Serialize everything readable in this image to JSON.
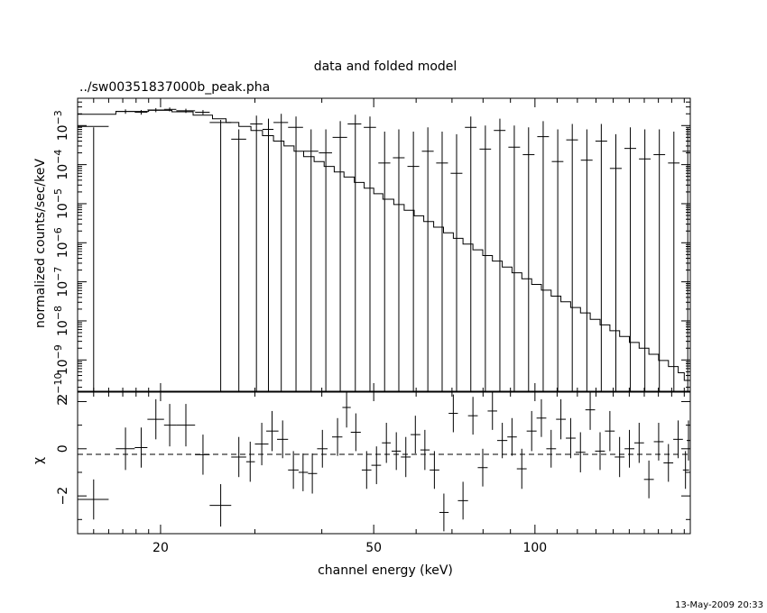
{
  "chart_data": [
    {
      "type": "scatter",
      "panel": "spectrum",
      "title": "data and folded model",
      "subtitle": "../sw00351837000b_peak.pha",
      "ylabel": "normalized counts/sec/keV",
      "xscale": "log",
      "yscale": "log",
      "xlim": [
        14,
        195
      ],
      "ylim": [
        1.5e-10,
        0.005
      ],
      "ytick_labels": [
        {
          "value": 2e-10,
          "base": "2",
          "exp": "10",
          "sign": "−"
        },
        {
          "value": 1e-09,
          "base": "10",
          "exp": "9",
          "sign": "−"
        },
        {
          "value": 1e-08,
          "base": "10",
          "exp": "8",
          "sign": "−"
        },
        {
          "value": 1e-07,
          "base": "10",
          "exp": "7",
          "sign": "−"
        },
        {
          "value": 1e-06,
          "base": "10",
          "exp": "6",
          "sign": "−"
        },
        {
          "value": 1e-05,
          "base": "10",
          "exp": "5",
          "sign": "−"
        },
        {
          "value": 0.0001,
          "base": "10",
          "exp": "4",
          "sign": "−"
        },
        {
          "value": 0.001,
          "base": "10",
          "exp": "3",
          "sign": "−"
        }
      ],
      "series": [
        {
          "kind": "data",
          "points": [
            [
              15.0,
              0.00095,
              14.0,
              16.0,
              1e-12,
              0.0009
            ],
            [
              17.2,
              0.0023,
              16.5,
              17.9,
              0.002,
              0.0026
            ],
            [
              18.4,
              0.0022,
              17.9,
              18.9,
              0.0019,
              0.0025
            ],
            [
              19.6,
              0.0025,
              18.9,
              20.3,
              0.0022,
              0.0028
            ],
            [
              20.8,
              0.0026,
              20.3,
              21.4,
              0.0023,
              0.0029
            ],
            [
              22.3,
              0.0024,
              21.4,
              23.2,
              0.0021,
              0.0027
            ],
            [
              24.0,
              0.0022,
              23.2,
              24.7,
              0.0019,
              0.0025
            ],
            [
              25.9,
              0.0012,
              24.7,
              27.1,
              1e-12,
              0.0014
            ],
            [
              28.0,
              0.00045,
              27.1,
              28.9,
              1e-12,
              0.0008
            ],
            [
              30.2,
              0.0011,
              29.4,
              31.0,
              1e-12,
              0.0018
            ],
            [
              31.8,
              0.0008,
              31.0,
              32.5,
              1e-12,
              0.0015
            ],
            [
              33.6,
              0.0012,
              32.5,
              34.6,
              1e-12,
              0.002
            ],
            [
              35.8,
              0.0009,
              34.6,
              36.9,
              1e-12,
              0.0017
            ],
            [
              38.2,
              0.00022,
              37.0,
              39.4,
              1e-12,
              0.0008
            ],
            [
              40.7,
              0.0002,
              39.5,
              41.8,
              1e-12,
              0.0008
            ],
            [
              43.3,
              0.0005,
              41.9,
              44.6,
              1e-12,
              0.0013
            ],
            [
              46.2,
              0.0011,
              44.7,
              47.4,
              1e-12,
              0.0019
            ],
            [
              49.2,
              0.0009,
              47.9,
              50.5,
              1e-12,
              0.0017
            ],
            [
              52.4,
              0.00011,
              51.0,
              53.7,
              1e-12,
              0.0007
            ],
            [
              55.7,
              0.00015,
              54.3,
              57.1,
              1e-12,
              0.0008
            ],
            [
              59.3,
              9e-05,
              57.8,
              60.8,
              1e-12,
              0.0007
            ],
            [
              63.1,
              0.00022,
              61.5,
              64.7,
              1e-12,
              0.0009
            ],
            [
              67.1,
              0.00011,
              65.4,
              68.8,
              1e-12,
              0.0007
            ],
            [
              71.4,
              6e-05,
              69.6,
              73.2,
              1e-12,
              0.0006
            ],
            [
              75.9,
              0.0009,
              74.0,
              77.8,
              1e-12,
              0.0017
            ],
            [
              80.8,
              0.00025,
              78.8,
              82.8,
              1e-12,
              0.001
            ],
            [
              86.0,
              0.00075,
              83.8,
              88.1,
              1e-12,
              0.0015
            ],
            [
              91.5,
              0.00028,
              89.2,
              93.8,
              1e-12,
              0.001
            ],
            [
              97.3,
              0.00018,
              94.9,
              99.8,
              1e-12,
              0.0009
            ],
            [
              103.6,
              0.00052,
              101.0,
              106.2,
              1e-12,
              0.0013
            ],
            [
              110.3,
              0.00012,
              107.5,
              113.0,
              1e-12,
              0.0008
            ],
            [
              117.4,
              0.00043,
              114.4,
              120.3,
              1e-12,
              0.0011
            ],
            [
              125.0,
              0.00013,
              121.8,
              128.1,
              1e-12,
              0.0008
            ],
            [
              133.0,
              0.0004,
              129.7,
              136.4,
              1e-12,
              0.0011
            ],
            [
              141.6,
              8e-05,
              138.0,
              145.2,
              1e-12,
              0.0006
            ],
            [
              150.7,
              0.00026,
              146.9,
              154.5,
              1e-12,
              0.0009
            ],
            [
              160.4,
              0.00014,
              156.4,
              164.4,
              1e-12,
              0.0008
            ],
            [
              170.7,
              0.00018,
              166.5,
              175.0,
              1e-12,
              0.0008
            ],
            [
              181.7,
              0.00011,
              177.2,
              186.2,
              1e-12,
              0.0007
            ],
            [
              192.9,
              0.00022,
              188.6,
              195.0,
              1e-12,
              0.0009
            ]
          ]
        },
        {
          "kind": "model",
          "steps": [
            [
              14.0,
              0.00195
            ],
            [
              16.5,
              0.0023
            ],
            [
              19.0,
              0.00245
            ],
            [
              21.0,
              0.00225
            ],
            [
              23.0,
              0.00185
            ],
            [
              25.0,
              0.0015
            ],
            [
              26.5,
              0.0012
            ],
            [
              28.0,
              0.00095
            ],
            [
              29.5,
              0.00075
            ],
            [
              31.0,
              0.00055
            ],
            [
              32.5,
              0.0004
            ],
            [
              34.0,
              0.0003
            ],
            [
              35.5,
              0.00022
            ],
            [
              37.0,
              0.00016
            ],
            [
              38.7,
              0.00012
            ],
            [
              40.4,
              9e-05
            ],
            [
              42.2,
              6.5e-05
            ],
            [
              44.0,
              4.8e-05
            ],
            [
              46.0,
              3.5e-05
            ],
            [
              48.0,
              2.5e-05
            ],
            [
              50.0,
              1.8e-05
            ],
            [
              52.0,
              1.3e-05
            ],
            [
              54.5,
              9.5e-06
            ],
            [
              57.0,
              6.8e-06
            ],
            [
              59.5,
              4.9e-06
            ],
            [
              62.0,
              3.5e-06
            ],
            [
              64.7,
              2.5e-06
            ],
            [
              67.5,
              1.8e-06
            ],
            [
              70.4,
              1.3e-06
            ],
            [
              73.4,
              9.3e-07
            ],
            [
              76.6,
              6.6e-07
            ],
            [
              79.9,
              4.7e-07
            ],
            [
              83.3,
              3.4e-07
            ],
            [
              86.9,
              2.4e-07
            ],
            [
              90.6,
              1.7e-07
            ],
            [
              94.5,
              1.2e-07
            ],
            [
              98.6,
              8.6e-08
            ],
            [
              102.8,
              6.1e-08
            ],
            [
              107.2,
              4.3e-08
            ],
            [
              111.8,
              3.1e-08
            ],
            [
              116.6,
              2.2e-08
            ],
            [
              121.6,
              1.6e-08
            ],
            [
              126.8,
              1.1e-08
            ],
            [
              132.3,
              7.9e-09
            ],
            [
              138.0,
              5.6e-09
            ],
            [
              143.9,
              4e-09
            ],
            [
              150.1,
              2.8e-09
            ],
            [
              156.5,
              2e-09
            ],
            [
              163.2,
              1.4e-09
            ],
            [
              170.2,
              9.7e-10
            ],
            [
              177.5,
              6.8e-10
            ],
            [
              185.1,
              4.7e-10
            ],
            [
              190.0,
              3e-10
            ],
            [
              195.0,
              3e-10
            ]
          ]
        }
      ]
    },
    {
      "type": "scatter",
      "panel": "residuals",
      "ylabel": "χ",
      "xlabel": "channel energy (keV)",
      "xscale": "log",
      "xlim": [
        14,
        195
      ],
      "ylim": [
        -3.6,
        2.4
      ],
      "yticks": [
        -2,
        0,
        2
      ],
      "ytick_labels": [
        "−2",
        "0",
        "2"
      ],
      "xticks": [
        20,
        50,
        100
      ],
      "xtick_labels": [
        "20",
        "50",
        "100"
      ],
      "zero_line": "dashed",
      "points": [
        [
          15.0,
          -2.15,
          14.0,
          16.0,
          -3.0,
          -1.3
        ],
        [
          17.2,
          0.0,
          16.5,
          17.9,
          -0.9,
          0.9
        ],
        [
          18.4,
          0.05,
          17.9,
          18.9,
          -0.8,
          0.9
        ],
        [
          19.6,
          1.25,
          18.9,
          20.3,
          0.4,
          2.1
        ],
        [
          20.8,
          1.0,
          20.3,
          21.4,
          0.1,
          1.9
        ],
        [
          22.3,
          1.0,
          21.4,
          23.2,
          0.1,
          1.9
        ],
        [
          24.0,
          -0.25,
          23.2,
          24.7,
          -1.1,
          0.6
        ],
        [
          25.9,
          -2.4,
          24.7,
          27.1,
          -3.3,
          -1.5
        ],
        [
          28.0,
          -0.35,
          27.1,
          28.9,
          -1.2,
          0.5
        ],
        [
          29.4,
          -0.55,
          28.9,
          30.0,
          -1.4,
          0.3
        ],
        [
          30.9,
          0.2,
          30.0,
          31.8,
          -0.7,
          1.1
        ],
        [
          32.3,
          0.75,
          31.5,
          33.2,
          -0.1,
          1.6
        ],
        [
          33.8,
          0.4,
          33.0,
          34.6,
          -0.4,
          1.2
        ],
        [
          35.4,
          -0.9,
          34.6,
          36.2,
          -1.7,
          -0.1
        ],
        [
          36.9,
          -1.0,
          36.2,
          37.7,
          -1.8,
          -0.2
        ],
        [
          38.4,
          -1.05,
          37.7,
          39.2,
          -1.9,
          -0.2
        ],
        [
          40.1,
          0.0,
          39.2,
          41.0,
          -0.8,
          0.8
        ],
        [
          42.8,
          0.5,
          41.8,
          43.7,
          -0.3,
          1.3
        ],
        [
          44.5,
          1.75,
          43.7,
          45.3,
          0.9,
          2.6
        ],
        [
          46.3,
          0.7,
          45.3,
          47.3,
          -0.1,
          1.5
        ],
        [
          48.5,
          -0.9,
          47.5,
          49.5,
          -1.7,
          -0.1
        ],
        [
          50.6,
          -0.7,
          49.5,
          51.6,
          -1.5,
          0.1
        ],
        [
          52.8,
          0.25,
          51.8,
          53.8,
          -0.6,
          1.1
        ],
        [
          55.1,
          -0.1,
          54.0,
          56.2,
          -0.9,
          0.7
        ],
        [
          57.4,
          -0.35,
          56.2,
          58.6,
          -1.2,
          0.5
        ],
        [
          59.8,
          0.6,
          58.6,
          61.1,
          -0.2,
          1.4
        ],
        [
          62.3,
          -0.05,
          61.1,
          63.6,
          -0.9,
          0.8
        ],
        [
          64.9,
          -0.9,
          63.6,
          66.3,
          -1.7,
          -0.1
        ],
        [
          67.6,
          -2.7,
          66.3,
          69.0,
          -3.5,
          -1.9
        ],
        [
          70.4,
          1.5,
          69.0,
          71.8,
          0.7,
          2.3
        ],
        [
          73.4,
          -2.2,
          71.8,
          75.0,
          -3.0,
          -1.4
        ],
        [
          76.6,
          1.4,
          75.0,
          78.2,
          0.6,
          2.2
        ],
        [
          79.9,
          -0.8,
          78.2,
          81.6,
          -1.6,
          0.0
        ],
        [
          83.3,
          1.6,
          81.6,
          85.0,
          0.8,
          2.4
        ],
        [
          86.9,
          0.35,
          85.0,
          88.8,
          -0.4,
          1.1
        ],
        [
          90.6,
          0.5,
          88.8,
          92.5,
          -0.3,
          1.3
        ],
        [
          94.5,
          -0.85,
          92.5,
          96.5,
          -1.7,
          0.0
        ],
        [
          98.6,
          0.75,
          96.5,
          100.7,
          -0.1,
          1.6
        ],
        [
          102.8,
          1.3,
          100.7,
          105.0,
          0.5,
          2.1
        ],
        [
          107.2,
          0.0,
          105.0,
          109.5,
          -0.8,
          0.8
        ],
        [
          111.8,
          1.25,
          109.5,
          114.2,
          0.4,
          2.1
        ],
        [
          116.6,
          0.45,
          114.2,
          119.1,
          -0.4,
          1.3
        ],
        [
          121.6,
          -0.15,
          119.1,
          124.2,
          -1.0,
          0.7
        ],
        [
          126.8,
          1.65,
          124.2,
          129.5,
          0.8,
          2.5
        ],
        [
          132.3,
          -0.1,
          129.5,
          135.1,
          -0.9,
          0.7
        ],
        [
          138.0,
          0.75,
          135.1,
          140.9,
          -0.1,
          1.6
        ],
        [
          143.9,
          -0.35,
          140.9,
          147.0,
          -1.2,
          0.5
        ],
        [
          150.1,
          0.0,
          147.0,
          153.3,
          -0.8,
          0.8
        ],
        [
          156.5,
          0.25,
          153.3,
          159.8,
          -0.6,
          1.1
        ],
        [
          163.2,
          -1.3,
          159.8,
          166.7,
          -2.1,
          -0.5
        ],
        [
          170.2,
          0.3,
          166.7,
          173.8,
          -0.5,
          1.1
        ],
        [
          177.5,
          -0.6,
          173.8,
          181.2,
          -1.4,
          0.2
        ],
        [
          185.1,
          0.4,
          181.2,
          188.9,
          -0.4,
          1.2
        ],
        [
          191.0,
          -0.9,
          188.9,
          194.0,
          -1.7,
          -0.1
        ],
        [
          193.5,
          0.35,
          192.0,
          195.0,
          -0.5,
          1.2
        ]
      ]
    }
  ],
  "footer": {
    "timestamp": "13-May-2009 20:33"
  }
}
